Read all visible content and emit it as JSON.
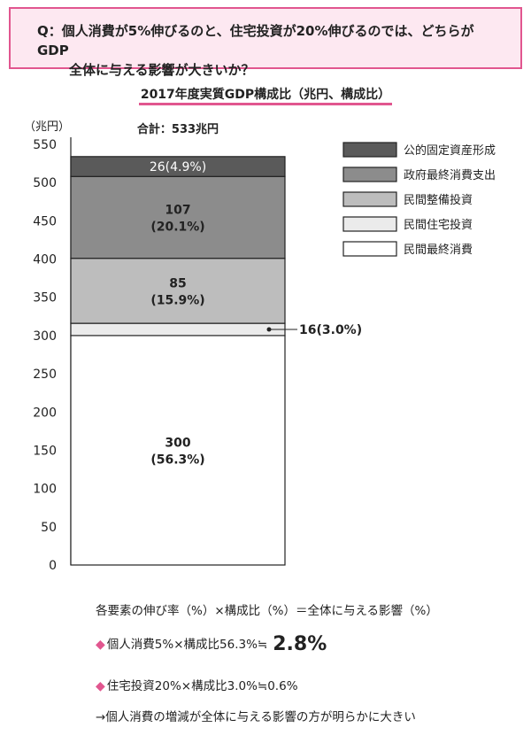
{
  "question": {
    "line1": "Q：個人消費が5%伸びるのと、住宅投資が20%伸びるのでは、どちらがGDP",
    "line2": "全体に与える影響が大きいか？"
  },
  "chart_data": {
    "type": "bar",
    "title": "2017年度実質GDP構成比（兆円、構成比）",
    "ylabel": "（兆円）",
    "ylim": [
      0,
      550
    ],
    "yticks": [
      0,
      50,
      100,
      150,
      200,
      250,
      300,
      350,
      400,
      450,
      500,
      550
    ],
    "total_label": "合計：533兆円",
    "segments": [
      {
        "name": "民間最終消費",
        "value": 300,
        "label1": "300",
        "label2": "(56.3%)",
        "color": "#ffffff"
      },
      {
        "name": "民間住宅投資",
        "value": 16,
        "label1": "16(3.0%)",
        "label2": "",
        "color": "#ebebeb"
      },
      {
        "name": "民間整備投資",
        "value": 85,
        "label1": "85",
        "label2": "(15.9%)",
        "color": "#bdbdbd"
      },
      {
        "name": "政府最終消費支出",
        "value": 107,
        "label1": "107",
        "label2": "(20.1%)",
        "color": "#8c8c8c"
      },
      {
        "name": "公的固定資産形成",
        "value": 26,
        "label1": "26(4.9%)",
        "label2": "",
        "color": "#5a5a5a"
      }
    ],
    "legend": [
      "公的固定資産形成",
      "政府最終消費支出",
      "民間整備投資",
      "民間住宅投資",
      "民間最終消費"
    ],
    "legend_placement": "right"
  },
  "formula": "各要素の伸び率（%）×構成比（%）＝全体に与える影響（%）",
  "item1": {
    "text": "個人消費5%×構成比56.3%≒",
    "result": "2.8%"
  },
  "item2": {
    "text": "住宅投資20%×構成比3.0%≒0.6%"
  },
  "conclusion": "→個人消費の増減が全体に与える影響の方が明らかに大きい",
  "marker": "◆"
}
